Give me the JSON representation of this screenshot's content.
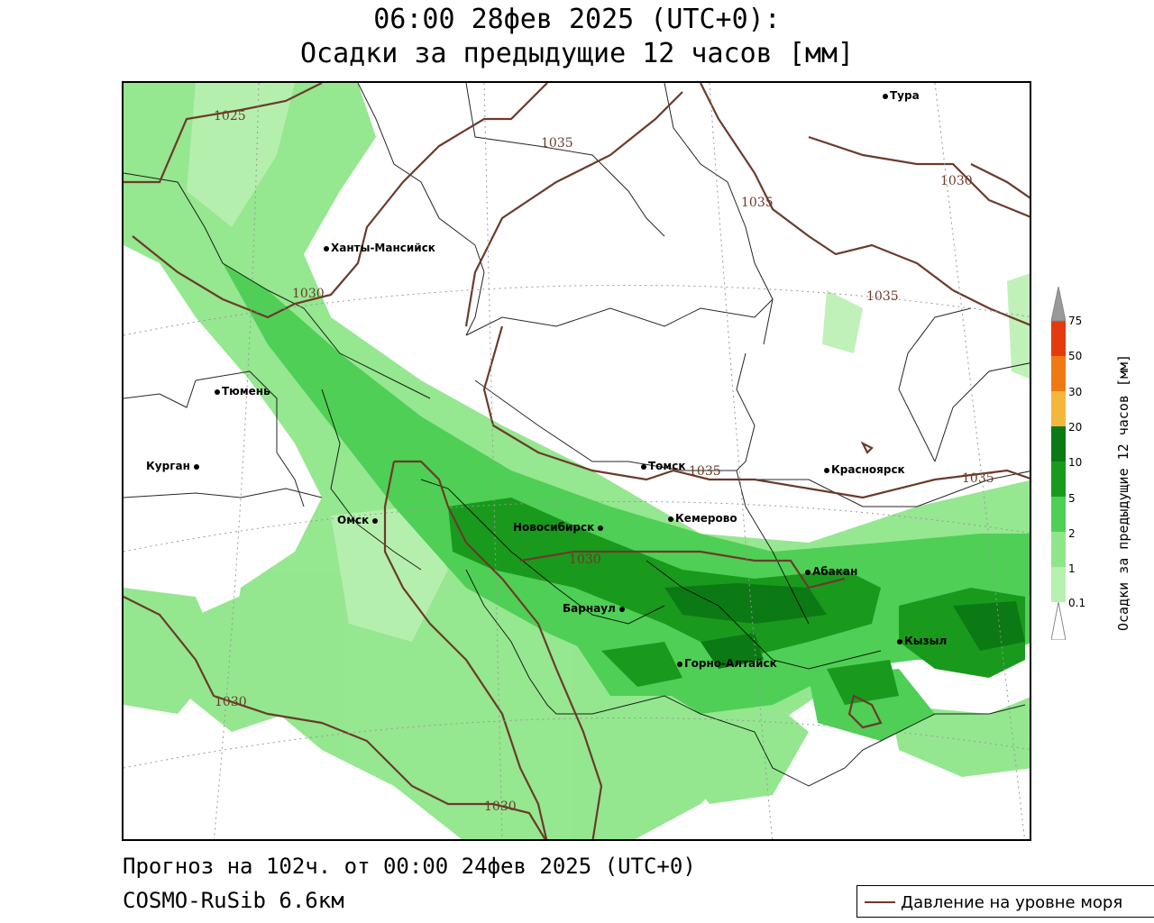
{
  "header": {
    "line1": "06:00 28фев 2025 (UTC+0):",
    "line2": "Осадки за предыдущие 12 часов [мм]"
  },
  "footer": {
    "forecast": "Прогноз на 102ч. от 00:00 24фев 2025 (UTC+0)",
    "model": "COSMO-RuSib 6.6км"
  },
  "legend": {
    "pressure_label": "Давление на уровне моря",
    "pressure_color": "#6b3b2a"
  },
  "colorbar": {
    "title": "Осадки за предыдущие 12 часов [мм]",
    "levels": [
      "0.1",
      "1",
      "2",
      "5",
      "10",
      "20",
      "30",
      "50",
      "75"
    ],
    "colors": [
      "#ffffff",
      "#b8f0b0",
      "#8fe68a",
      "#4fcf55",
      "#199a1d",
      "#0b7a14",
      "#f5b73a",
      "#f07a12",
      "#e43a10",
      "#b81208",
      "#999999"
    ]
  },
  "cities": [
    {
      "name": "Тура"
    },
    {
      "name": "Ханты-Мансийск"
    },
    {
      "name": "Тюмень"
    },
    {
      "name": "Курган"
    },
    {
      "name": "Омск"
    },
    {
      "name": "Новосибирск"
    },
    {
      "name": "Томск"
    },
    {
      "name": "Кемерово"
    },
    {
      "name": "Красноярск"
    },
    {
      "name": "Абакан"
    },
    {
      "name": "Барнаул"
    },
    {
      "name": "Горно-Алтайск"
    },
    {
      "name": "Кызыл"
    }
  ],
  "isobars": [
    "1025",
    "1035",
    "1030",
    "1035",
    "1030",
    "1035",
    "1035",
    "1030",
    "1030",
    "1030"
  ]
}
